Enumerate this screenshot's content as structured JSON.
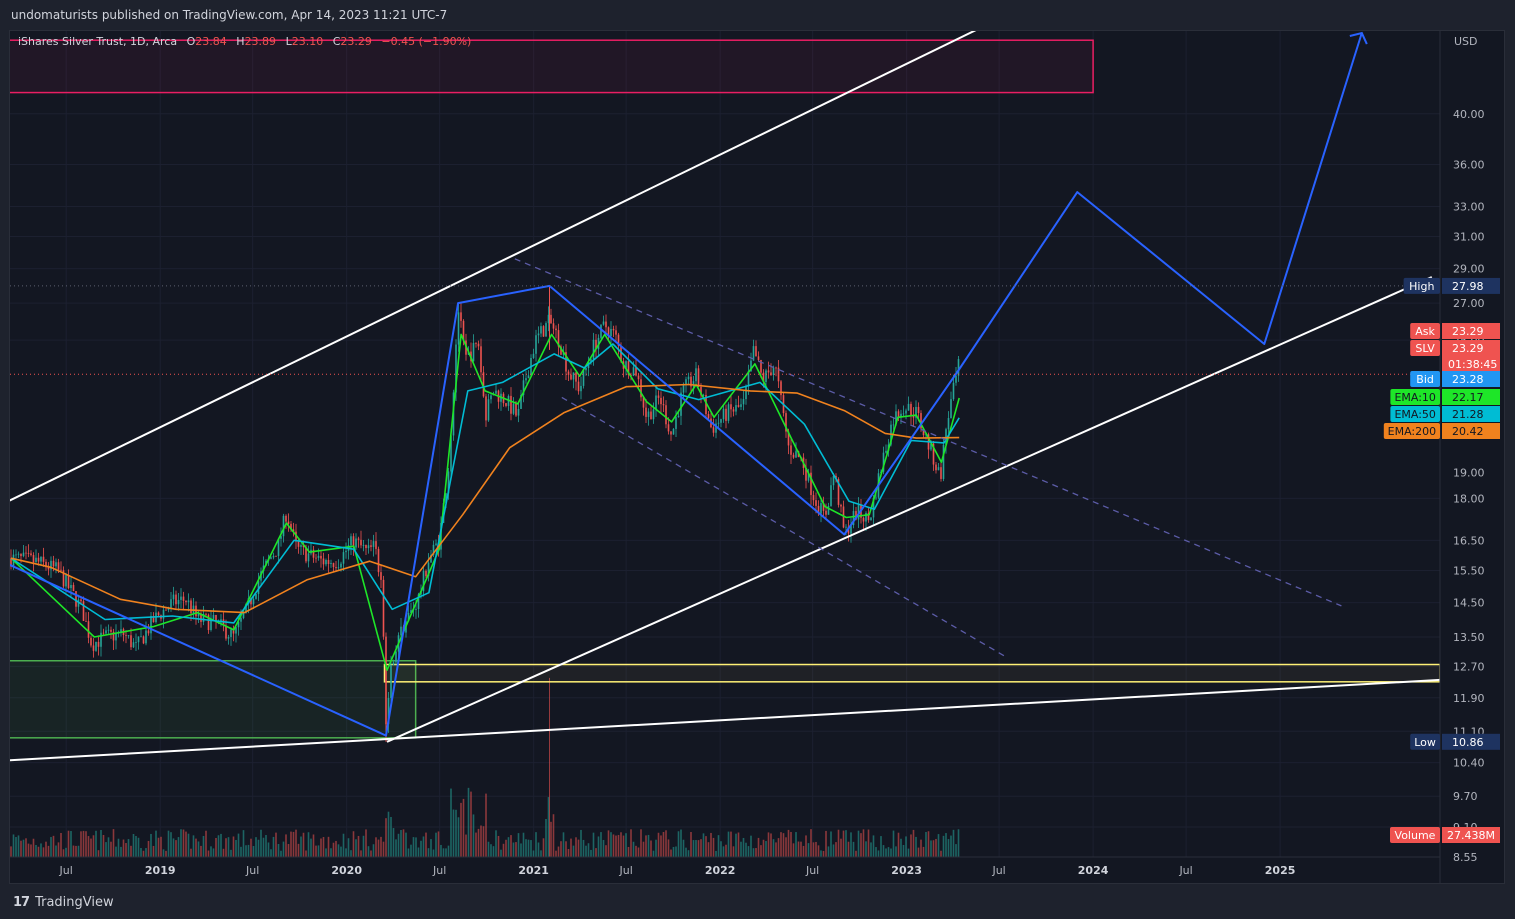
{
  "header": {
    "published": "undomaturists published on TradingView.com, Apr 14, 2023 11:21 UTC-7"
  },
  "legend": {
    "symbol": "iShares Silver Trust, 1D, Arca",
    "open_label": "O",
    "open": "23.84",
    "high_label": "H",
    "high": "23.89",
    "low_label": "L",
    "low": "23.10",
    "close_label": "C",
    "close": "23.29",
    "change": "−0.45 (−1.90%)"
  },
  "footer": {
    "brand": "TradingView",
    "logo_glyph": "17"
  },
  "colors": {
    "background": "#131722",
    "grid": "#1c2030",
    "white_line": "#ffffff",
    "blue_path": "#2962ff",
    "channel_dashed": "#5c5ca8",
    "ema10": "#1ee628",
    "ema50": "#00bcd4",
    "ema200": "#f0821e",
    "candle_up": "#26a69a",
    "candle_down": "#ef5350",
    "resistance_box": "#e91e63",
    "support_box": "#4caf50",
    "yellow_box": "#fff176"
  },
  "chart_data": {
    "type": "candlestick",
    "symbol": "SLV",
    "title": "iShares Silver Trust, 1D, Arca",
    "scale": "log",
    "currency": "USD",
    "ylim": [
      8.55,
      47.5
    ],
    "y_ticks": [
      40.0,
      36.0,
      33.0,
      31.0,
      29.0,
      27.0,
      25.0,
      18.0,
      16.5,
      15.5,
      14.5,
      13.5,
      12.7,
      11.9,
      11.1,
      10.4,
      9.7,
      9.1
    ],
    "y_tick_labels": [
      "40.00",
      "36.00",
      "33.00",
      "31.00",
      "29.00",
      "27.00",
      "25.00",
      "18.00",
      "16.50",
      "15.50",
      "14.50",
      "13.50",
      "12.70",
      "11.90",
      "11.10",
      "10.40",
      "9.70",
      "9.10"
    ],
    "partial_tick_labels": [
      "19.00",
      "8.55"
    ],
    "x_ticks": [
      {
        "label": "Jul",
        "date": "2018-07-01",
        "major": false
      },
      {
        "label": "2019",
        "date": "2019-01-01",
        "major": true
      },
      {
        "label": "Jul",
        "date": "2019-07-01",
        "major": false
      },
      {
        "label": "2020",
        "date": "2020-01-01",
        "major": true
      },
      {
        "label": "Jul",
        "date": "2020-07-01",
        "major": false
      },
      {
        "label": "2021",
        "date": "2021-01-01",
        "major": true
      },
      {
        "label": "Jul",
        "date": "2021-07-01",
        "major": false
      },
      {
        "label": "2022",
        "date": "2022-01-01",
        "major": true
      },
      {
        "label": "Jul",
        "date": "2022-07-01",
        "major": false
      },
      {
        "label": "2023",
        "date": "2023-01-01",
        "major": true
      },
      {
        "label": "Jul",
        "date": "2023-07-01",
        "major": false
      },
      {
        "label": "2024",
        "date": "2024-01-01",
        "major": true
      },
      {
        "label": "Jul",
        "date": "2024-07-01",
        "major": false
      },
      {
        "label": "2025",
        "date": "2025-01-01",
        "major": true
      }
    ],
    "x_range": [
      "2018-03-13",
      "2025-11-10"
    ],
    "price_series": [
      [
        "2018-03-15",
        15.9
      ],
      [
        "2018-05-01",
        15.8
      ],
      [
        "2018-06-15",
        15.5
      ],
      [
        "2018-08-01",
        14.3
      ],
      [
        "2018-08-20",
        13.3
      ],
      [
        "2018-09-15",
        13.5
      ],
      [
        "2018-10-20",
        13.6
      ],
      [
        "2018-11-15",
        13.2
      ],
      [
        "2018-12-20",
        14.0
      ],
      [
        "2019-01-25",
        14.5
      ],
      [
        "2019-02-20",
        14.6
      ],
      [
        "2019-03-15",
        14.0
      ],
      [
        "2019-04-20",
        13.9
      ],
      [
        "2019-05-25",
        13.5
      ],
      [
        "2019-06-20",
        14.3
      ],
      [
        "2019-07-15",
        15.3
      ],
      [
        "2019-08-01",
        15.8
      ],
      [
        "2019-08-20",
        16.3
      ],
      [
        "2019-09-05",
        17.5
      ],
      [
        "2019-09-25",
        16.2
      ],
      [
        "2019-10-20",
        16.0
      ],
      [
        "2019-11-15",
        15.8
      ],
      [
        "2019-12-15",
        15.8
      ],
      [
        "2020-01-15",
        16.5
      ],
      [
        "2020-02-10",
        16.1
      ],
      [
        "2020-02-25",
        16.3
      ],
      [
        "2020-03-10",
        15.0
      ],
      [
        "2020-03-18",
        11.3
      ],
      [
        "2020-03-30",
        12.9
      ],
      [
        "2020-04-20",
        13.8
      ],
      [
        "2020-05-20",
        14.6
      ],
      [
        "2020-06-10",
        15.9
      ],
      [
        "2020-06-30",
        16.5
      ],
      [
        "2020-07-20",
        19.5
      ],
      [
        "2020-08-06",
        26.8
      ],
      [
        "2020-08-20",
        24.0
      ],
      [
        "2020-09-15",
        24.8
      ],
      [
        "2020-09-28",
        21.4
      ],
      [
        "2020-10-15",
        22.5
      ],
      [
        "2020-11-10",
        22.0
      ],
      [
        "2020-12-01",
        21.3
      ],
      [
        "2020-12-15",
        23.0
      ],
      [
        "2021-01-05",
        25.0
      ],
      [
        "2021-02-01",
        26.0
      ],
      [
        "2021-02-20",
        25.0
      ],
      [
        "2021-03-10",
        23.4
      ],
      [
        "2021-04-01",
        22.6
      ],
      [
        "2021-04-25",
        24.5
      ],
      [
        "2021-05-20",
        25.8
      ],
      [
        "2021-06-10",
        25.2
      ],
      [
        "2021-06-25",
        23.8
      ],
      [
        "2021-07-20",
        23.5
      ],
      [
        "2021-08-10",
        21.3
      ],
      [
        "2021-09-05",
        22.2
      ],
      [
        "2021-09-28",
        20.5
      ],
      [
        "2021-10-20",
        22.5
      ],
      [
        "2021-11-15",
        23.2
      ],
      [
        "2021-12-15",
        20.8
      ],
      [
        "2022-01-15",
        21.5
      ],
      [
        "2022-02-15",
        21.8
      ],
      [
        "2022-03-08",
        24.5
      ],
      [
        "2022-03-25",
        23.0
      ],
      [
        "2022-04-18",
        23.8
      ],
      [
        "2022-05-15",
        20.0
      ],
      [
        "2022-06-10",
        19.5
      ],
      [
        "2022-07-05",
        18.0
      ],
      [
        "2022-07-25",
        17.3
      ],
      [
        "2022-08-12",
        19.0
      ],
      [
        "2022-09-01",
        16.7
      ],
      [
        "2022-09-25",
        17.5
      ],
      [
        "2022-10-20",
        17.2
      ],
      [
        "2022-11-15",
        19.5
      ],
      [
        "2022-12-05",
        21.2
      ],
      [
        "2022-12-25",
        21.8
      ],
      [
        "2023-01-20",
        21.5
      ],
      [
        "2023-02-15",
        20.0
      ],
      [
        "2023-03-08",
        18.8
      ],
      [
        "2023-03-20",
        21.0
      ],
      [
        "2023-04-13",
        23.7
      ],
      [
        "2023-04-14",
        23.29
      ]
    ],
    "ema_series": [
      {
        "name": "EMA:10",
        "last": 22.17,
        "points": [
          [
            "2018-03-15",
            15.9
          ],
          [
            "2018-08-25",
            13.5
          ],
          [
            "2018-12-20",
            13.8
          ],
          [
            "2019-03-15",
            14.2
          ],
          [
            "2019-05-25",
            13.7
          ],
          [
            "2019-09-05",
            17.1
          ],
          [
            "2019-10-20",
            16.1
          ],
          [
            "2020-01-15",
            16.3
          ],
          [
            "2020-03-20",
            12.6
          ],
          [
            "2020-04-20",
            13.6
          ],
          [
            "2020-06-30",
            16.2
          ],
          [
            "2020-08-12",
            25.3
          ],
          [
            "2020-09-28",
            22.5
          ],
          [
            "2020-12-01",
            21.9
          ],
          [
            "2021-02-05",
            25.3
          ],
          [
            "2021-04-01",
            23.2
          ],
          [
            "2021-05-20",
            25.3
          ],
          [
            "2021-08-10",
            22.0
          ],
          [
            "2021-09-28",
            21.1
          ],
          [
            "2021-11-15",
            22.8
          ],
          [
            "2021-12-20",
            21.3
          ],
          [
            "2022-03-10",
            23.8
          ],
          [
            "2022-05-20",
            20.4
          ],
          [
            "2022-07-25",
            17.7
          ],
          [
            "2022-09-05",
            17.3
          ],
          [
            "2022-10-20",
            17.4
          ],
          [
            "2022-12-15",
            21.3
          ],
          [
            "2023-01-20",
            21.4
          ],
          [
            "2023-03-10",
            19.4
          ],
          [
            "2023-04-14",
            22.17
          ]
        ]
      },
      {
        "name": "EMA:50",
        "last": 21.28,
        "points": [
          [
            "2018-03-15",
            15.9
          ],
          [
            "2018-09-15",
            14.0
          ],
          [
            "2019-01-25",
            14.1
          ],
          [
            "2019-05-25",
            13.9
          ],
          [
            "2019-09-20",
            16.5
          ],
          [
            "2020-01-15",
            16.2
          ],
          [
            "2020-03-30",
            14.3
          ],
          [
            "2020-06-10",
            14.8
          ],
          [
            "2020-08-25",
            22.5
          ],
          [
            "2020-11-01",
            22.9
          ],
          [
            "2021-02-10",
            24.3
          ],
          [
            "2021-04-10",
            23.6
          ],
          [
            "2021-06-05",
            24.8
          ],
          [
            "2021-09-01",
            22.6
          ],
          [
            "2021-11-20",
            22.1
          ],
          [
            "2022-03-20",
            22.9
          ],
          [
            "2022-06-15",
            21.0
          ],
          [
            "2022-09-10",
            17.9
          ],
          [
            "2022-10-30",
            17.6
          ],
          [
            "2023-01-10",
            20.3
          ],
          [
            "2023-03-15",
            20.2
          ],
          [
            "2023-04-14",
            21.28
          ]
        ]
      },
      {
        "name": "EMA:200",
        "last": 20.42,
        "points": [
          [
            "2018-03-15",
            15.9
          ],
          [
            "2018-06-01",
            15.6
          ],
          [
            "2018-10-15",
            14.6
          ],
          [
            "2019-02-01",
            14.3
          ],
          [
            "2019-06-15",
            14.2
          ],
          [
            "2019-10-15",
            15.2
          ],
          [
            "2020-02-15",
            15.8
          ],
          [
            "2020-05-15",
            15.3
          ],
          [
            "2020-08-15",
            17.4
          ],
          [
            "2020-11-15",
            20.0
          ],
          [
            "2021-03-01",
            21.5
          ],
          [
            "2021-07-01",
            22.7
          ],
          [
            "2021-11-01",
            22.8
          ],
          [
            "2022-03-01",
            22.5
          ],
          [
            "2022-06-01",
            22.4
          ],
          [
            "2022-09-01",
            21.6
          ],
          [
            "2022-11-20",
            20.6
          ],
          [
            "2023-01-20",
            20.4
          ],
          [
            "2023-04-14",
            20.42
          ]
        ]
      }
    ],
    "volume": {
      "label": "Volume",
      "last_label": "27.438M",
      "last": 27438000
    },
    "price_labels": [
      {
        "name": "High",
        "value": 27.98,
        "text": "27.98"
      },
      {
        "name": "Ask",
        "value": 23.29,
        "text": "23.29"
      },
      {
        "name": "SLV",
        "value": 23.29,
        "text": "23.29",
        "countdown": "01:38:45"
      },
      {
        "name": "Bid",
        "value": 23.28,
        "text": "23.28"
      },
      {
        "name": "EMA:10",
        "value": 22.17,
        "text": "22.17"
      },
      {
        "name": "EMA:50",
        "value": 21.28,
        "text": "21.28"
      },
      {
        "name": "EMA:200",
        "value": 20.42,
        "text": "20.42"
      },
      {
        "name": "Low",
        "value": 10.86,
        "text": "10.86"
      }
    ],
    "horizontal_lines": [
      {
        "name": "high-line",
        "value": 27.98
      },
      {
        "name": "last-price-line",
        "value": 23.29
      }
    ],
    "drawings": {
      "channel_upper": [
        [
          "2018-03-10",
          17.9
        ],
        [
          "2023-08-01",
          49.5
        ]
      ],
      "channel_lower": [
        [
          "2020-03-20",
          10.86
        ],
        [
          "2025-10-25",
          28.5
        ]
      ],
      "long_trendline": [
        [
          "2018-03-10",
          10.45
        ],
        [
          "2025-11-10",
          12.35
        ]
      ],
      "blue_wave_path": [
        [
          "2018-03-10",
          15.7
        ],
        [
          "2020-03-18",
          11.0
        ],
        [
          "2020-08-06",
          27.0
        ],
        [
          "2021-02-01",
          27.98
        ],
        [
          "2022-09-01",
          16.7
        ],
        [
          "2023-04-13",
          23.5
        ],
        [
          "2023-12-01",
          34.0
        ],
        [
          "2024-12-01",
          24.8
        ],
        [
          "2025-06-10",
          47.3
        ]
      ],
      "blue_arrow_head": [
        "2025-06-10",
        47.3
      ],
      "desc_channel_upper": [
        [
          "2020-11-25",
          29.6
        ],
        [
          "2025-05-01",
          14.4
        ]
      ],
      "desc_channel_lower": [
        [
          "2021-02-25",
          22.2
        ],
        [
          "2023-07-15",
          12.95
        ]
      ],
      "resistance_box": {
        "from": "2018-03-10",
        "to": "2024-01-01",
        "top": 46.6,
        "bottom": 41.8
      },
      "support_box": {
        "from": "2018-03-10",
        "to": "2020-05-15",
        "top": 12.85,
        "bottom": 10.95
      },
      "yellow_box": {
        "from": "2020-03-15",
        "to": "2025-11-10",
        "top": 12.75,
        "bottom": 12.3
      }
    }
  }
}
